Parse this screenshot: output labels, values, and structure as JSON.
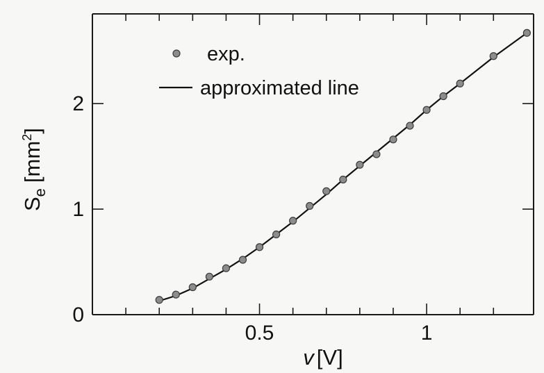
{
  "chart_data": {
    "type": "scatter",
    "xlabel": {
      "variable": "v",
      "unit": "[V]"
    },
    "ylabel": {
      "variable": "S",
      "subscript": "e",
      "unit_prefix": "[mm",
      "unit_superscript": "2",
      "unit_suffix": "]"
    },
    "xlim": [
      0.0,
      1.32
    ],
    "ylim": [
      0.0,
      2.85
    ],
    "x_ticks": [
      0.5,
      1.0
    ],
    "x_tick_labels": [
      "0.5",
      "1"
    ],
    "x_minor_ticks": [
      0.1,
      0.2,
      0.3,
      0.4,
      0.6,
      0.7,
      0.8,
      0.9,
      1.1,
      1.2
    ],
    "y_ticks": [
      0.0,
      1.0,
      2.0
    ],
    "y_tick_labels": [
      "0",
      "1",
      "2"
    ],
    "grid": false,
    "legend": {
      "position": "top-left",
      "entries": [
        {
          "label": "exp.",
          "kind": "marker",
          "series": "exp"
        },
        {
          "label": "approximated line",
          "kind": "line",
          "series": "approx"
        }
      ]
    },
    "series": [
      {
        "name": "exp.",
        "kind": "marker",
        "x": [
          0.2,
          0.25,
          0.3,
          0.35,
          0.4,
          0.45,
          0.5,
          0.55,
          0.6,
          0.65,
          0.7,
          0.75,
          0.8,
          0.85,
          0.9,
          0.95,
          1.0,
          1.05,
          1.1,
          1.2,
          1.3
        ],
        "y": [
          0.14,
          0.19,
          0.26,
          0.36,
          0.44,
          0.52,
          0.64,
          0.76,
          0.89,
          1.03,
          1.17,
          1.28,
          1.42,
          1.52,
          1.66,
          1.79,
          1.94,
          2.07,
          2.19,
          2.45,
          2.67
        ]
      },
      {
        "name": "approximated line",
        "kind": "line",
        "x": [
          0.2,
          0.25,
          0.3,
          0.35,
          0.4,
          0.45,
          0.5,
          0.55,
          0.6,
          0.65,
          0.7,
          0.75,
          0.8,
          0.85,
          0.9,
          0.95,
          1.0,
          1.05,
          1.1,
          1.2,
          1.3
        ],
        "y": [
          0.13,
          0.18,
          0.25,
          0.34,
          0.43,
          0.53,
          0.64,
          0.76,
          0.88,
          1.01,
          1.14,
          1.28,
          1.41,
          1.54,
          1.67,
          1.8,
          1.94,
          2.07,
          2.19,
          2.44,
          2.67
        ]
      }
    ],
    "colors": {
      "marker_fill": "#8c8c8c",
      "marker_stroke": "#3c3c3c",
      "line": "#111111",
      "axis": "#1a1a1a",
      "background": "#f7f7f5"
    }
  }
}
